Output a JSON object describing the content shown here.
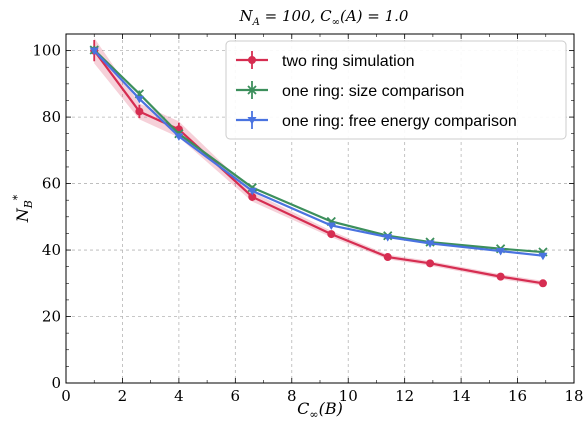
{
  "chart_data": {
    "type": "line",
    "title": "N_A = 100,  C∞(A) = 1.0",
    "xlabel": "C∞(B)",
    "ylabel": "N*_B",
    "xlim": [
      0,
      18
    ],
    "ylim": [
      0,
      105
    ],
    "xticks": [
      0,
      2,
      4,
      6,
      8,
      10,
      12,
      14,
      16,
      18
    ],
    "yticks": [
      0,
      20,
      40,
      60,
      80,
      100
    ],
    "grid": true,
    "legend_position": "top-right",
    "series": [
      {
        "name": "two ring simulation",
        "color": "#d62d51",
        "marker": "circle",
        "band": true,
        "x": [
          1.0,
          2.6,
          4.0,
          6.6,
          9.4,
          11.4,
          12.9,
          15.4,
          16.9
        ],
        "y": [
          100.0,
          81.7,
          76.3,
          56.0,
          44.8,
          37.9,
          36.0,
          32.0,
          30.0
        ],
        "err": [
          3.2,
          2.0,
          2.0,
          1.2,
          0.8,
          0.6,
          0.6,
          0.6,
          0.6
        ]
      },
      {
        "name": "one ring: size comparison",
        "color": "#3c8f5c",
        "marker": "x",
        "x": [
          1.0,
          2.6,
          4.0,
          6.6,
          9.4,
          11.4,
          12.9,
          15.4,
          16.9
        ],
        "y": [
          100.2,
          87.0,
          75.0,
          58.8,
          48.6,
          44.3,
          42.4,
          40.4,
          39.4
        ],
        "err": [
          1.2,
          1.0,
          0.8,
          0.6,
          0.5,
          0.4,
          0.4,
          0.4,
          0.4
        ]
      },
      {
        "name": "one ring: free energy comparison",
        "color": "#4a73e0",
        "marker": "triangle-down",
        "x": [
          1.0,
          2.6,
          4.0,
          6.6,
          9.4,
          11.4,
          12.9,
          15.4,
          16.9
        ],
        "y": [
          100.0,
          85.5,
          74.2,
          57.8,
          47.4,
          43.9,
          42.0,
          39.7,
          38.3
        ],
        "err": [
          1.0,
          0.8,
          0.6,
          0.5,
          0.4,
          0.4,
          0.4,
          0.4,
          0.4
        ]
      }
    ]
  }
}
